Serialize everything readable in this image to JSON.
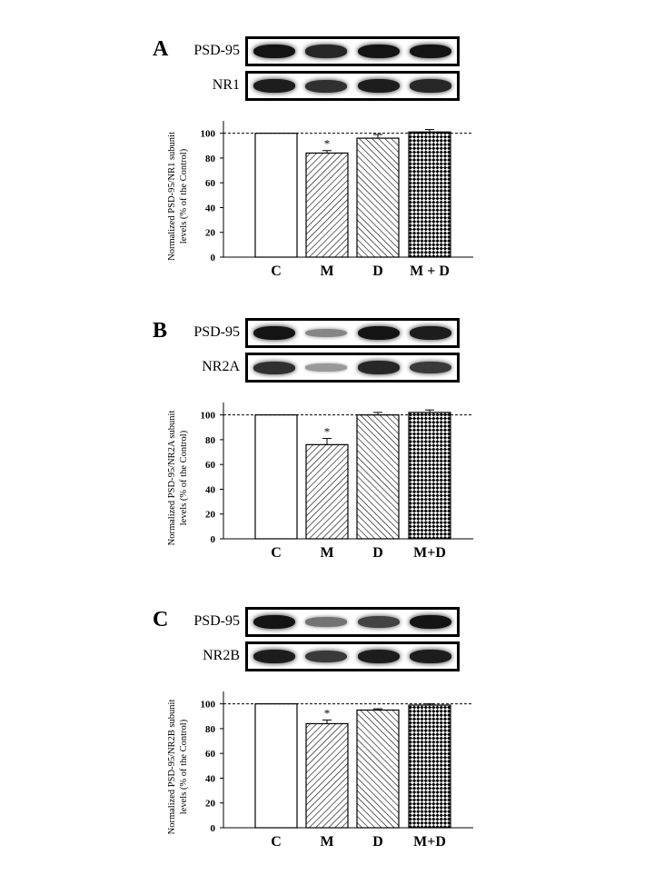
{
  "panels": [
    {
      "letter": "A",
      "blots": [
        {
          "label": "PSD-95",
          "intensity": [
            0.95,
            0.85,
            0.95,
            0.95
          ]
        },
        {
          "label": "NR1",
          "intensity": [
            0.9,
            0.8,
            0.9,
            0.85
          ]
        }
      ]
    },
    {
      "letter": "B",
      "blots": [
        {
          "label": "PSD-95",
          "intensity": [
            0.95,
            0.35,
            0.95,
            0.9
          ]
        },
        {
          "label": "NR2A",
          "intensity": [
            0.8,
            0.25,
            0.85,
            0.75
          ]
        }
      ]
    },
    {
      "letter": "C",
      "blots": [
        {
          "label": "PSD-95",
          "intensity": [
            0.95,
            0.45,
            0.7,
            0.95
          ]
        },
        {
          "label": "NR2B",
          "intensity": [
            0.9,
            0.75,
            0.9,
            0.9
          ]
        }
      ]
    }
  ],
  "chart_data": [
    {
      "type": "bar",
      "categories": [
        "C",
        "M",
        "D",
        "M+D"
      ],
      "category_labels": [
        "C",
        "M",
        "D",
        "M + D"
      ],
      "values": [
        100,
        84,
        96,
        101
      ],
      "errors": [
        0,
        2,
        3,
        2
      ],
      "significance": [
        "",
        "*",
        "",
        ""
      ],
      "patterns": [
        "none",
        "diag-right",
        "diag-left",
        "checker"
      ],
      "ylabel_lines": [
        "Normalized PSD-95/NR1  subunit",
        "levels (% of the Control)"
      ],
      "yticks": [
        "0",
        "20",
        "40",
        "60",
        "80",
        "100"
      ],
      "ylim": [
        0,
        110
      ],
      "reference_line": 100
    },
    {
      "type": "bar",
      "categories": [
        "C",
        "M",
        "D",
        "M+D"
      ],
      "category_labels": [
        "C",
        "M",
        "D",
        "M+D"
      ],
      "values": [
        100,
        76,
        100,
        102
      ],
      "errors": [
        0,
        5,
        2,
        2
      ],
      "significance": [
        "",
        "*",
        "",
        ""
      ],
      "patterns": [
        "none",
        "diag-right",
        "diag-left",
        "checker"
      ],
      "ylabel_lines": [
        "Normalized PSD-95/NR2A subunit",
        "levels (% of the Control)"
      ],
      "yticks": [
        "0",
        "20",
        "40",
        "60",
        "80",
        "100"
      ],
      "ylim": [
        0,
        110
      ],
      "reference_line": 100
    },
    {
      "type": "bar",
      "categories": [
        "C",
        "M",
        "D",
        "M+D"
      ],
      "category_labels": [
        "C",
        "M",
        "D",
        "M+D"
      ],
      "values": [
        100,
        84,
        95,
        99
      ],
      "errors": [
        0,
        3,
        1,
        1
      ],
      "significance": [
        "",
        "*",
        "",
        ""
      ],
      "patterns": [
        "none",
        "diag-right",
        "diag-left",
        "checker"
      ],
      "ylabel_lines": [
        "Normalized PSD-95/NR2B subunit",
        "levels (% of the Control)"
      ],
      "yticks": [
        "0",
        "20",
        "40",
        "60",
        "80",
        "100"
      ],
      "ylim": [
        0,
        110
      ],
      "reference_line": 100
    }
  ]
}
